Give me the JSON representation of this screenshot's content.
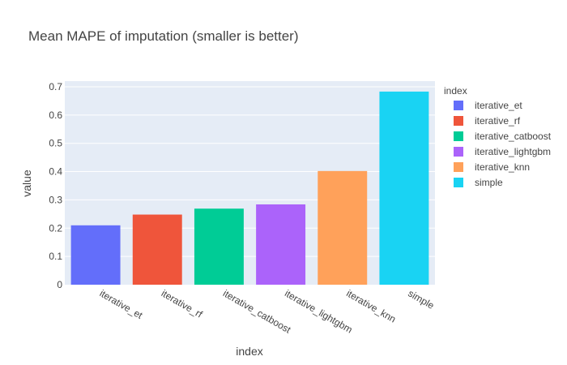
{
  "chart_data": {
    "type": "bar",
    "title": "Mean MAPE of imputation (smaller is better)",
    "xlabel": "index",
    "ylabel": "value",
    "categories": [
      "iterative_et",
      "iterative_rf",
      "iterative_catboost",
      "iterative_lightgbm",
      "iterative_knn",
      "simple"
    ],
    "values": [
      0.21,
      0.248,
      0.269,
      0.284,
      0.402,
      0.683
    ],
    "colors": [
      "#636efa",
      "#ef553b",
      "#00cc96",
      "#ab63fa",
      "#ffa15a",
      "#19d3f3"
    ],
    "ylim": [
      0,
      0.72
    ],
    "yticks": [
      "0",
      "0.1",
      "0.2",
      "0.3",
      "0.4",
      "0.5",
      "0.6",
      "0.7"
    ],
    "grid": true,
    "plot_background": "#e5ecf6",
    "legend": {
      "title": "index",
      "placement": "right",
      "entries": [
        "iterative_et",
        "iterative_rf",
        "iterative_catboost",
        "iterative_lightgbm",
        "iterative_knn",
        "simple"
      ]
    }
  }
}
